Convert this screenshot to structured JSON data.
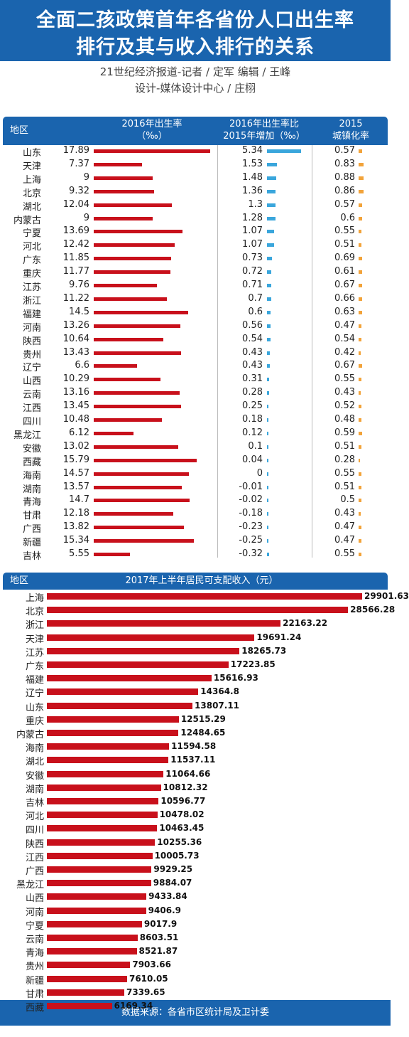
{
  "title": {
    "line1": "全面二孩政策首年各省份人口出生率",
    "line2": "排行及其与收入排行的关系"
  },
  "credits": {
    "line1": "21世纪经济报道-记者 / 定军   编辑 / 王峰",
    "line2": "设计-媒体设计中心 / 庄栩"
  },
  "table1_header": {
    "region": "地区",
    "birth_rate_line1": "2016年出生率",
    "birth_rate_line2": "（‰）",
    "increase_line1": "2016年出生率比",
    "increase_line2": "2015年增加（‰）",
    "urban_line1": "2015",
    "urban_line2": "城镇化率"
  },
  "table2_header": {
    "region": "地区",
    "income": "2017年上半年居民可支配收入（元）"
  },
  "footer": "数据来源：各省市区统计局及卫计委",
  "colors": {
    "header_blue": "#1a64ae",
    "bar_red": "#c8101b",
    "bar_blue": "#3aa6dc",
    "bar_orange": "#f2a33a"
  },
  "chart_data": [
    {
      "type": "table",
      "columns": [
        "地区",
        "2016年出生率（‰）",
        "2016年出生率比2015年增加（‰）",
        "2015城镇化率"
      ],
      "categories": [
        "山东",
        "天津",
        "上海",
        "北京",
        "湖北",
        "内蒙古",
        "宁夏",
        "河北",
        "广东",
        "重庆",
        "江苏",
        "浙江",
        "福建",
        "河南",
        "陕西",
        "贵州",
        "辽宁",
        "山西",
        "云南",
        "江西",
        "四川",
        "黑龙江",
        "安徽",
        "西藏",
        "海南",
        "湖南",
        "青海",
        "甘肃",
        "广西",
        "新疆",
        "吉林"
      ],
      "series": [
        {
          "name": "2016年出生率",
          "values": [
            "17.89",
            "7.37",
            "9",
            "9.32",
            "12.04",
            "9",
            "13.69",
            "12.42",
            "11.85",
            "11.77",
            "9.76",
            "11.22",
            "14.5",
            "13.26",
            "10.64",
            "13.43",
            "6.6",
            "10.29",
            "13.16",
            "13.45",
            "10.48",
            "6.12",
            "13.02",
            "15.79",
            "14.57",
            "13.57",
            "14.7",
            "12.18",
            "13.82",
            "15.34",
            "5.55"
          ]
        },
        {
          "name": "2016年出生率比2015年增加",
          "values": [
            "5.34",
            "1.53",
            "1.48",
            "1.36",
            "1.3",
            "1.28",
            "1.07",
            "1.07",
            "0.73",
            "0.72",
            "0.71",
            "0.7",
            "0.6",
            "0.56",
            "0.54",
            "0.43",
            "0.43",
            "0.31",
            "0.28",
            "0.25",
            "0.18",
            "0.12",
            "0.1",
            "0.04",
            "0",
            "-0.01",
            "-0.02",
            "-0.18",
            "-0.23",
            "-0.25",
            "-0.32"
          ]
        },
        {
          "name": "2015城镇化率",
          "values": [
            "0.57",
            "0.83",
            "0.88",
            "0.86",
            "0.57",
            "0.6",
            "0.55",
            "0.51",
            "0.69",
            "0.61",
            "0.67",
            "0.66",
            "0.63",
            "0.47",
            "0.54",
            "0.42",
            "0.67",
            "0.55",
            "0.43",
            "0.52",
            "0.48",
            "0.59",
            "0.51",
            "0.28",
            "0.55",
            "0.51",
            "0.5",
            "0.43",
            "0.47",
            "0.47",
            "0.55"
          ]
        }
      ]
    },
    {
      "type": "bar",
      "title": "2017年上半年居民可支配收入（元）",
      "categories": [
        "上海",
        "北京",
        "浙江",
        "天津",
        "江苏",
        "广东",
        "福建",
        "辽宁",
        "山东",
        "重庆",
        "内蒙古",
        "海南",
        "湖北",
        "安徽",
        "湖南",
        "吉林",
        "河北",
        "四川",
        "陕西",
        "江西",
        "广西",
        "黑龙江",
        "山西",
        "河南",
        "宁夏",
        "云南",
        "青海",
        "贵州",
        "新疆",
        "甘肃",
        "西藏"
      ],
      "values": [
        "29901.63",
        "28566.28",
        "22163.22",
        "19691.24",
        "18265.73",
        "17223.85",
        "15616.93",
        "14364.8",
        "13807.11",
        "12515.29",
        "12484.65",
        "11594.58",
        "11537.11",
        "11064.66",
        "10812.32",
        "10596.77",
        "10478.02",
        "10463.45",
        "10255.36",
        "10005.73",
        "9929.25",
        "9884.07",
        "9433.84",
        "9406.9",
        "9017.9",
        "8603.51",
        "8521.87",
        "7903.66",
        "7610.05",
        "7339.65",
        "6169.34"
      ]
    }
  ]
}
